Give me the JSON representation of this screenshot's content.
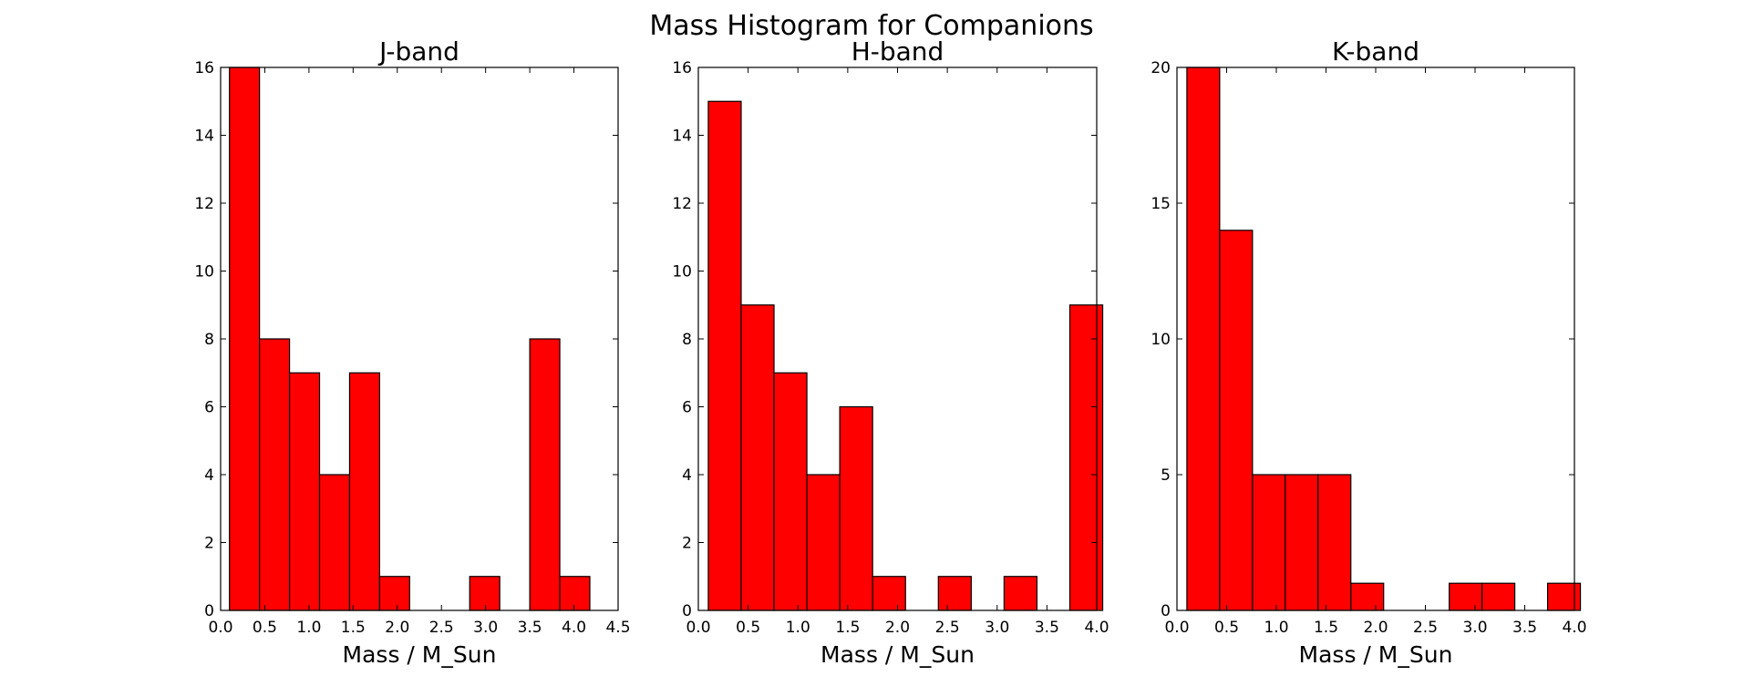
{
  "chart_data": {
    "type": "bar",
    "suptitle": "Mass Histogram for Companions",
    "bar_color": "#ff0000",
    "edge_color": "#000000",
    "grid": false,
    "panels": [
      {
        "title": "J-band",
        "xlabel": "Mass / M_Sun",
        "ylabel": "",
        "xlim": [
          0.0,
          4.5
        ],
        "ylim": [
          0,
          16
        ],
        "xticks": [
          0.0,
          0.5,
          1.0,
          1.5,
          2.0,
          2.5,
          3.0,
          3.5,
          4.0,
          4.5
        ],
        "xtick_labels": [
          "0.0",
          "0.5",
          "1.0",
          "1.5",
          "2.0",
          "2.5",
          "3.0",
          "3.5",
          "4.0",
          "4.5"
        ],
        "yticks": [
          0,
          2,
          4,
          6,
          8,
          10,
          12,
          14,
          16
        ],
        "ytick_labels": [
          "0",
          "2",
          "4",
          "6",
          "8",
          "10",
          "12",
          "14",
          "16"
        ],
        "bin_edges": [
          0.1,
          0.44,
          0.78,
          1.12,
          1.46,
          1.8,
          2.14,
          2.48,
          2.82,
          3.16,
          3.5,
          3.84,
          4.18
        ],
        "counts": [
          16,
          8,
          7,
          4,
          7,
          1,
          0,
          0,
          1,
          0,
          8,
          1
        ]
      },
      {
        "title": "H-band",
        "xlabel": "Mass / M_Sun",
        "ylabel": "",
        "xlim": [
          0.0,
          4.0
        ],
        "ylim": [
          0,
          16
        ],
        "xticks": [
          0.0,
          0.5,
          1.0,
          1.5,
          2.0,
          2.5,
          3.0,
          3.5,
          4.0
        ],
        "xtick_labels": [
          "0.0",
          "0.5",
          "1.0",
          "1.5",
          "2.0",
          "2.5",
          "3.0",
          "3.5",
          "4.0"
        ],
        "yticks": [
          0,
          2,
          4,
          6,
          8,
          10,
          12,
          14,
          16
        ],
        "ytick_labels": [
          "0",
          "2",
          "4",
          "6",
          "8",
          "10",
          "12",
          "14",
          "16"
        ],
        "bin_edges": [
          0.1,
          0.43,
          0.76,
          1.09,
          1.42,
          1.75,
          2.08,
          2.41,
          2.74,
          3.07,
          3.4,
          3.73,
          4.06
        ],
        "counts": [
          15,
          9,
          7,
          4,
          6,
          1,
          0,
          1,
          0,
          1,
          0,
          9
        ]
      },
      {
        "title": "K-band",
        "xlabel": "Mass / M_Sun",
        "ylabel": "",
        "xlim": [
          0.0,
          4.0
        ],
        "ylim": [
          0,
          20
        ],
        "xticks": [
          0.0,
          0.5,
          1.0,
          1.5,
          2.0,
          2.5,
          3.0,
          3.5,
          4.0
        ],
        "xtick_labels": [
          "0.0",
          "0.5",
          "1.0",
          "1.5",
          "2.0",
          "2.5",
          "3.0",
          "3.5",
          "4.0"
        ],
        "yticks": [
          0,
          5,
          10,
          15,
          20
        ],
        "ytick_labels": [
          "0",
          "5",
          "10",
          "15",
          "20"
        ],
        "bin_edges": [
          0.1,
          0.43,
          0.76,
          1.09,
          1.42,
          1.75,
          2.08,
          2.41,
          2.74,
          3.07,
          3.4,
          3.73,
          4.06
        ],
        "counts": [
          20,
          14,
          5,
          5,
          5,
          1,
          0,
          0,
          1,
          1,
          0,
          1
        ]
      }
    ]
  }
}
